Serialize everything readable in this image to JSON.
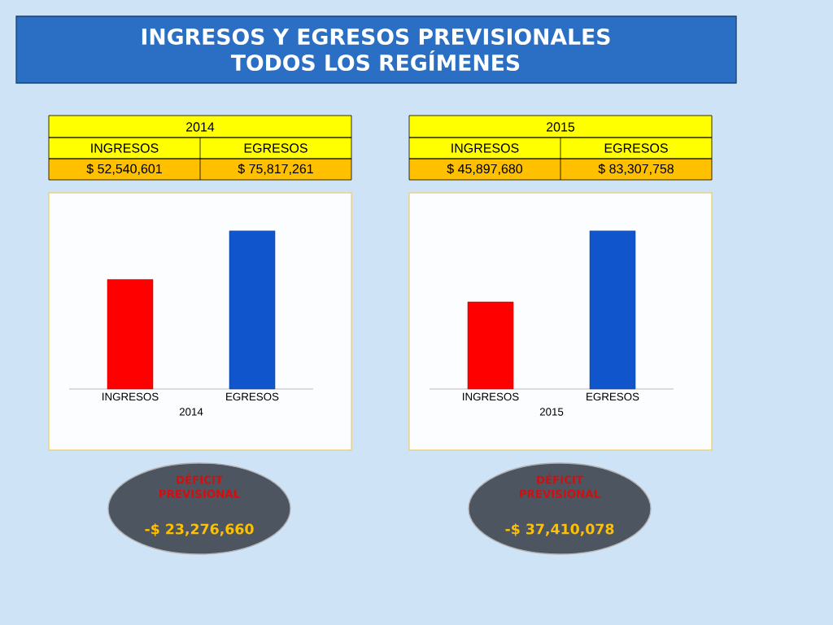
{
  "chart_data": [
    {
      "type": "other",
      "title": "INGRESOS Y EGRESOS PREVISIONALES",
      "subtitle": "TODOS LOS REGÍMENES"
    },
    {
      "type": "bar",
      "subtitle": "2014",
      "xlabel": "2014",
      "categories": [
        "INGRESOS",
        "EGRESOS"
      ],
      "values": [
        52540601,
        75817261
      ],
      "value_labels": [
        "$ 52,540,601",
        "$ 75,817,261"
      ],
      "colors": [
        "#ff0000",
        "#1155cc"
      ],
      "annotations": [
        "DÉFICIT PREVISIONAL",
        "-$ 23,276,660"
      ]
    },
    {
      "type": "bar",
      "subtitle": "2015",
      "xlabel": "2015",
      "categories": [
        "INGRESOS",
        "EGRESOS"
      ],
      "values": [
        45897680,
        83307758
      ],
      "value_labels": [
        "$ 45,897,680",
        "$ 83,307,758"
      ],
      "colors": [
        "#ff0000",
        "#1155cc"
      ],
      "annotations": [
        "DÉFICIT PREVISIONAL",
        "-$ 37,410,078"
      ]
    }
  ]
}
